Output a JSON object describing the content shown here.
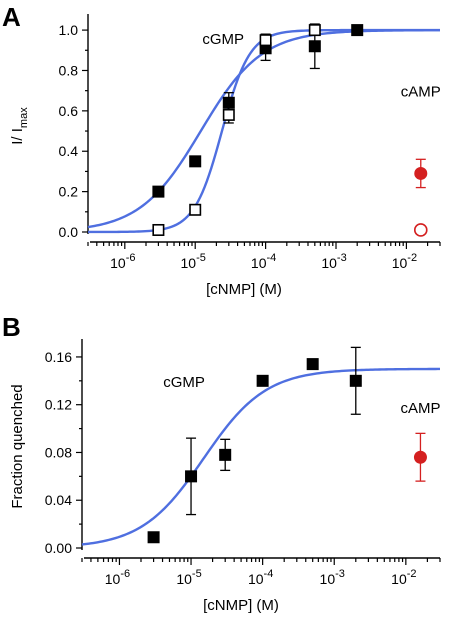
{
  "chart_data": [
    {
      "panel_label": "A",
      "type": "scatter",
      "xscale": "log",
      "xlim": [
        3e-07,
        0.03
      ],
      "ylim": [
        0,
        1.05
      ],
      "xlabel": "[cNMP] (M)",
      "ylabel_main": "I/ I",
      "ylabel_sub": "max",
      "yticks": [
        0.0,
        0.2,
        0.4,
        0.6,
        0.8,
        1.0
      ],
      "ytick_labels": [
        "0.0",
        "0.2",
        "0.4",
        "0.6",
        "0.8",
        "1.0"
      ],
      "xtick_exps": [
        -6,
        -5,
        -4,
        -3,
        -2
      ],
      "annotations": [
        {
          "text": "cGMP",
          "x": 2.5e-05,
          "y": 0.93
        },
        {
          "text": "cAMP",
          "x": 0.016,
          "y": 0.67
        }
      ],
      "series": [
        {
          "marker": "square-filled",
          "color": "#000000",
          "points": [
            {
              "x": 3e-06,
              "y": 0.2,
              "err": 0
            },
            {
              "x": 1e-05,
              "y": 0.35,
              "err": 0
            },
            {
              "x": 3e-05,
              "y": 0.64,
              "err": 0.05
            },
            {
              "x": 0.0001,
              "y": 0.91,
              "err": 0.06
            },
            {
              "x": 0.0005,
              "y": 0.92,
              "err": 0.11
            },
            {
              "x": 0.002,
              "y": 1.0,
              "err": 0
            }
          ]
        },
        {
          "marker": "square-open",
          "color": "#000000",
          "points": [
            {
              "x": 3e-06,
              "y": 0.01,
              "err": 0
            },
            {
              "x": 1e-05,
              "y": 0.11,
              "err": 0
            },
            {
              "x": 3e-05,
              "y": 0.58,
              "err": 0.04
            },
            {
              "x": 0.0001,
              "y": 0.95,
              "err": 0.03
            },
            {
              "x": 0.0005,
              "y": 1.0,
              "err": 0
            }
          ]
        },
        {
          "marker": "circle-filled",
          "color": "#d42020",
          "points": [
            {
              "x": 0.016,
              "y": 0.29,
              "err": 0.07
            }
          ]
        },
        {
          "marker": "circle-open",
          "color": "#d42020",
          "points": [
            {
              "x": 0.016,
              "y": 0.01,
              "err": 0
            }
          ]
        }
      ],
      "fits": [
        {
          "color": "#4f6fe0",
          "k": 1.2e-05,
          "n": 1.0,
          "ymax": 1.0
        },
        {
          "color": "#4f6fe0",
          "k": 2.4e-05,
          "n": 2.2,
          "ymax": 1.0
        }
      ]
    },
    {
      "panel_label": "B",
      "type": "scatter",
      "xscale": "log",
      "xlim": [
        3e-07,
        0.03
      ],
      "ylim": [
        0,
        0.17
      ],
      "xlabel": "[cNMP] (M)",
      "ylabel_main": "Fraction quenched",
      "ylabel_sub": "",
      "yticks": [
        0.0,
        0.04,
        0.08,
        0.12,
        0.16
      ],
      "ytick_labels": [
        "0.00",
        "0.04",
        "0.08",
        "0.12",
        "0.16"
      ],
      "xtick_exps": [
        -6,
        -5,
        -4,
        -3,
        -2
      ],
      "annotations": [
        {
          "text": "cGMP",
          "x": 8e-06,
          "y": 0.135
        },
        {
          "text": "cAMP",
          "x": 0.016,
          "y": 0.113
        }
      ],
      "series": [
        {
          "marker": "square-filled",
          "color": "#000000",
          "points": [
            {
              "x": 3e-06,
              "y": 0.009,
              "err": 0.004
            },
            {
              "x": 1e-05,
              "y": 0.06,
              "err": 0.032
            },
            {
              "x": 3e-05,
              "y": 0.078,
              "err": 0.013
            },
            {
              "x": 0.0001,
              "y": 0.14,
              "err": 0
            },
            {
              "x": 0.0005,
              "y": 0.154,
              "err": 0
            },
            {
              "x": 0.002,
              "y": 0.14,
              "err": 0.028
            }
          ]
        },
        {
          "marker": "circle-filled",
          "color": "#d42020",
          "points": [
            {
              "x": 0.016,
              "y": 0.076,
              "err": 0.02
            }
          ]
        }
      ],
      "fits": [
        {
          "color": "#4f6fe0",
          "k": 1.5e-05,
          "n": 1.0,
          "ymax": 0.15
        }
      ]
    }
  ]
}
